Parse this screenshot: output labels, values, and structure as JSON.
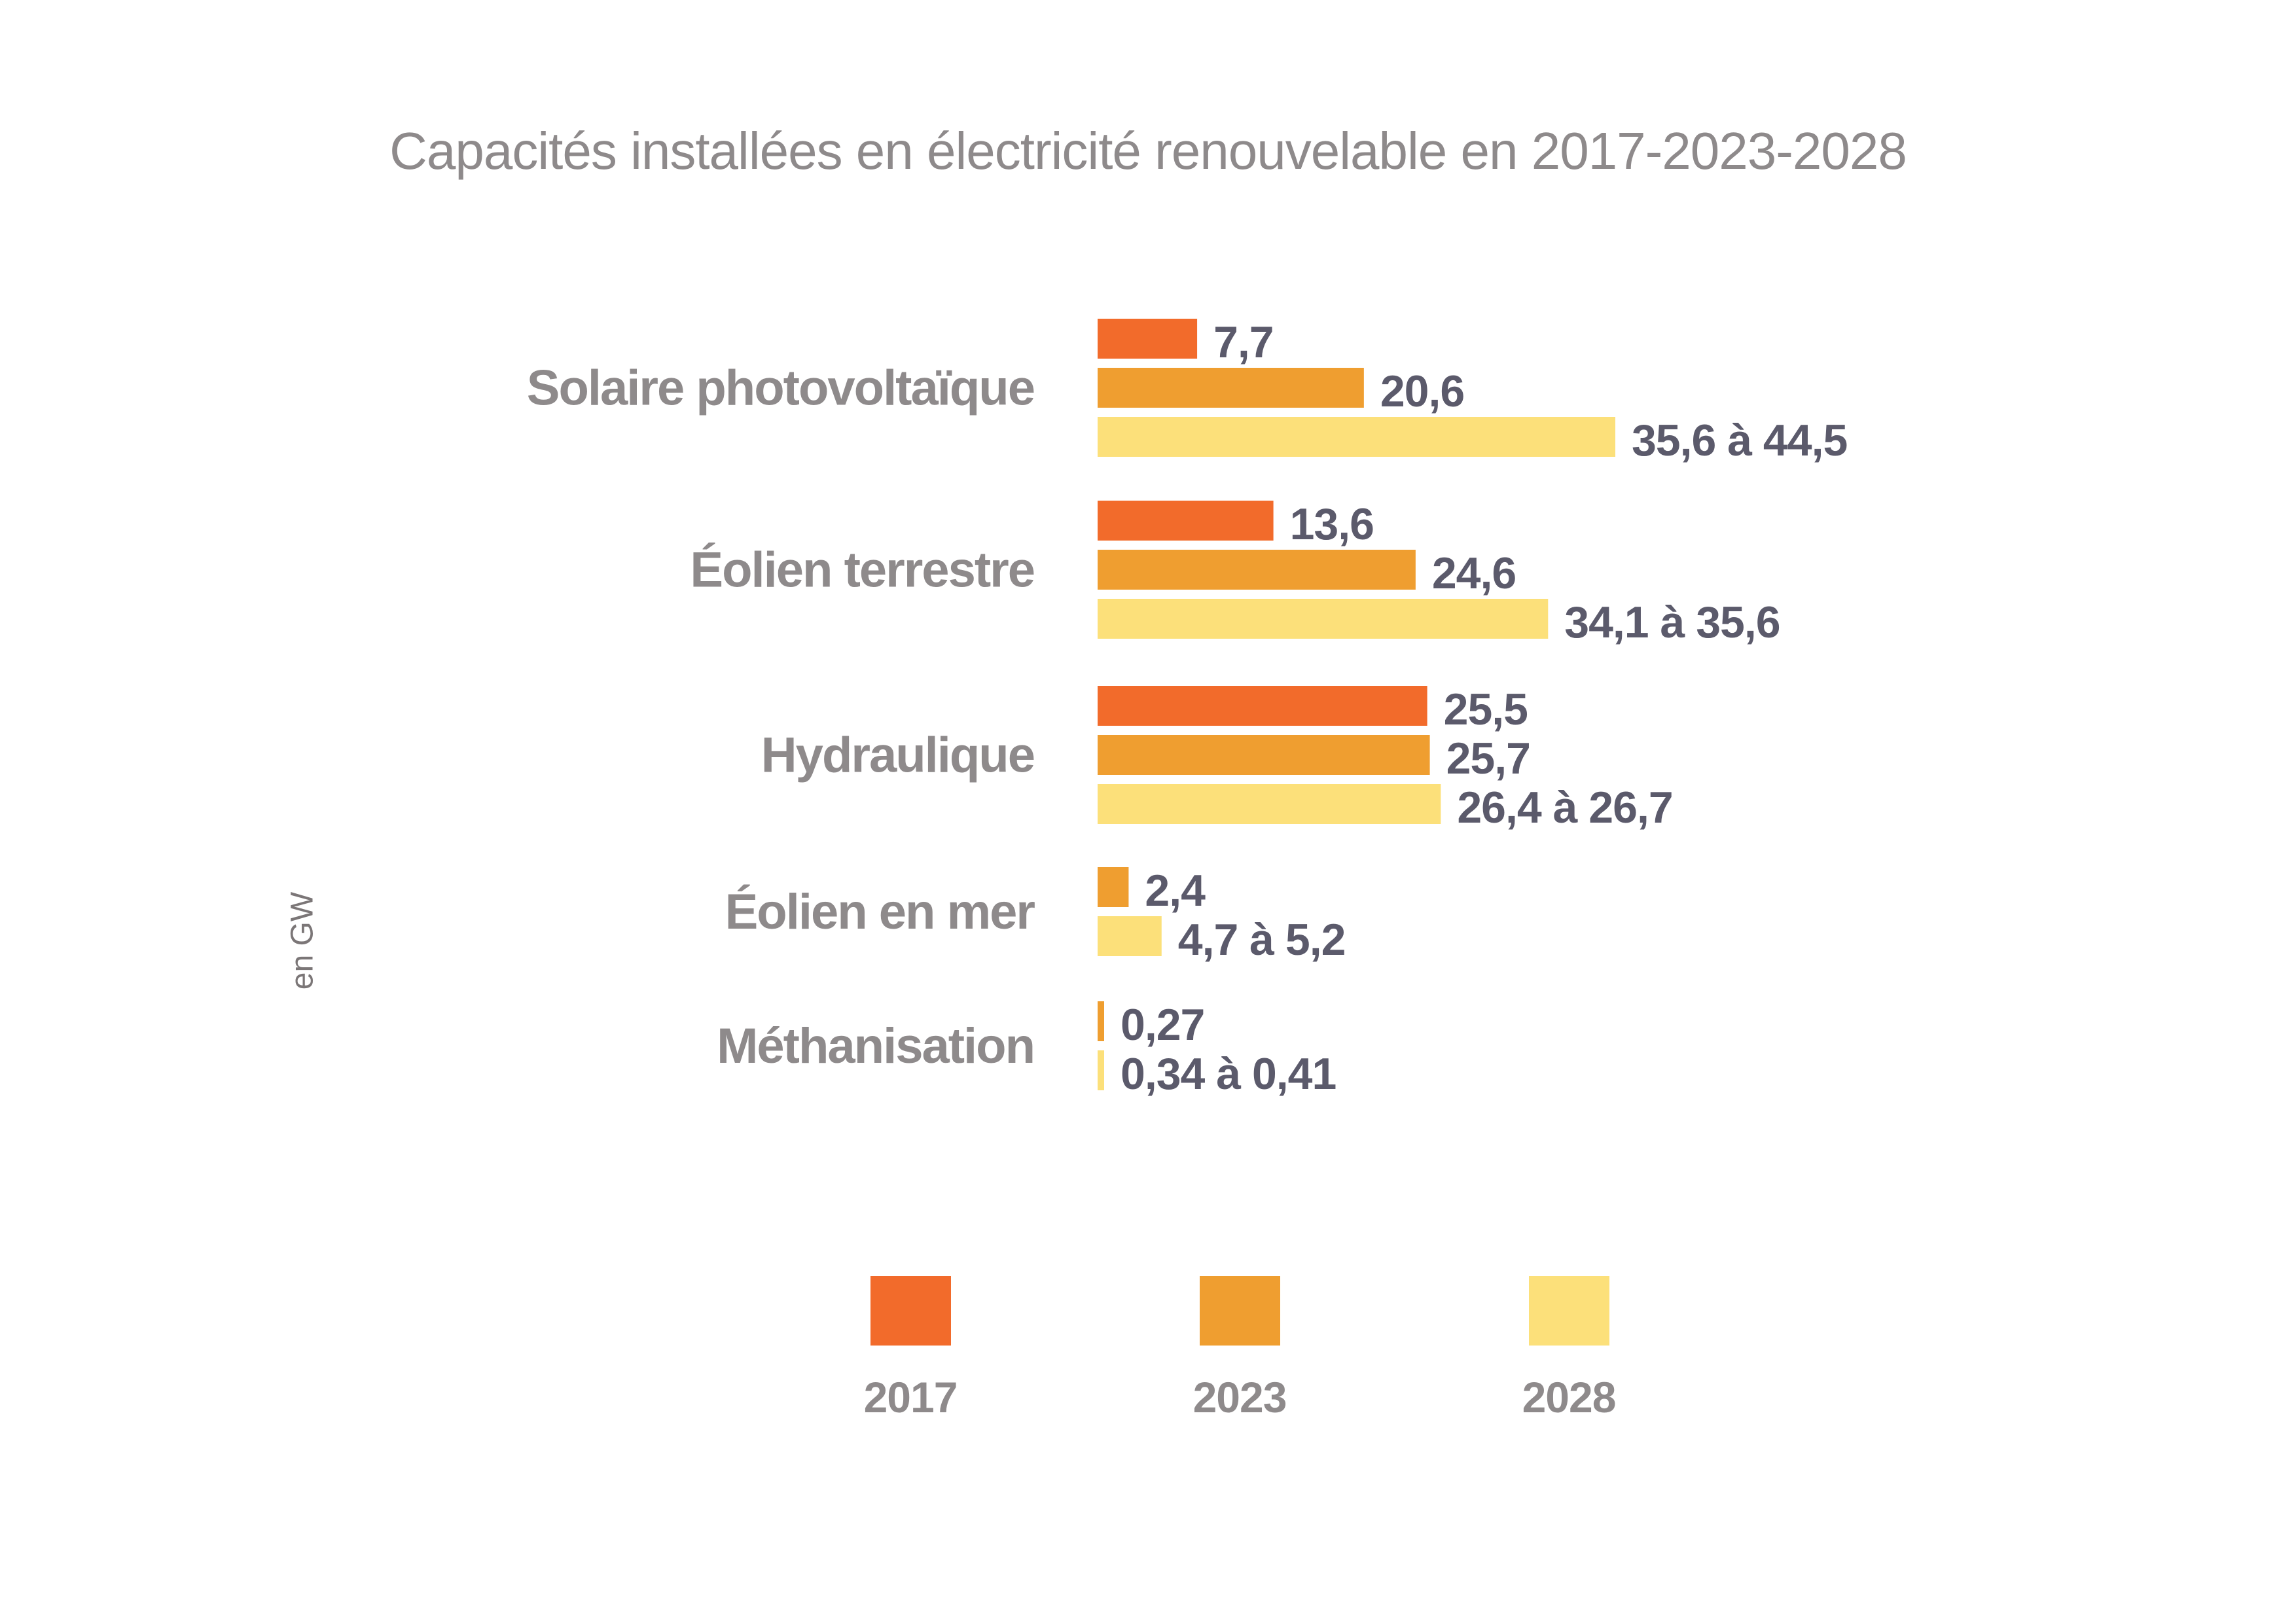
{
  "chart_data": {
    "type": "bar",
    "orientation": "horizontal",
    "title": "Capacités installées en électricité renouvelable en 2017-2023-2028",
    "ylabel": "en GW",
    "xlabel": "",
    "grid": false,
    "legend_position": "bottom",
    "categories": [
      "Solaire photovoltaïque",
      "Éolien terrestre",
      "Hydraulique",
      "Éolien en mer",
      "Méthanisation"
    ],
    "series": [
      {
        "name": "2017",
        "color": "#f26b2b",
        "values": [
          7.7,
          13.6,
          25.5,
          null,
          null
        ],
        "labels": [
          "7,7",
          "13,6",
          "25,5",
          null,
          null
        ]
      },
      {
        "name": "2023",
        "color": "#ef9e30",
        "values": [
          20.6,
          24.6,
          25.7,
          2.4,
          0.27
        ],
        "labels": [
          "20,6",
          "24,6",
          "25,7",
          "2,4",
          "0,27"
        ]
      },
      {
        "name": "2028",
        "color": "#fce07a",
        "values": [
          [
            35.6,
            44.5
          ],
          [
            34.1,
            35.6
          ],
          [
            26.4,
            26.7
          ],
          [
            4.7,
            5.2
          ],
          [
            0.34,
            0.41
          ]
        ],
        "labels": [
          "35,6 à 44,5",
          "34,1 à 35,6",
          "26,4 à 26,7",
          "4,7 à 5,2",
          "0,34 à 0,41"
        ]
      }
    ],
    "xlim": [
      0,
      46
    ],
    "label_text_color": "#5b5a6b",
    "category_text_color": "#8e8a8b"
  }
}
